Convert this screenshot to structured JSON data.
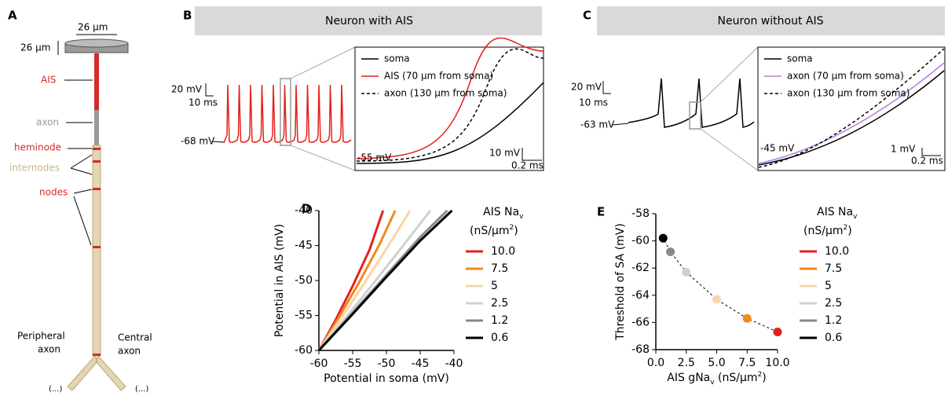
{
  "panel_a": {
    "letter": "A",
    "width_label": "26 μm",
    "height_label": "26 μm",
    "ais": "AIS",
    "axon": "axon",
    "heminode": "heminode",
    "internodes": "internodes",
    "nodes": "nodes",
    "peripheral_axon": [
      "Peripheral",
      "axon"
    ],
    "central_axon": [
      "Central",
      "axon"
    ],
    "continuation": [
      "(...)",
      "(...)"
    ]
  },
  "panel_b": {
    "letter": "B",
    "title": "Neuron with AIS",
    "scale_v": "20 mV",
    "scale_t": "10 ms",
    "rest": "-68 mV",
    "legend": [
      "soma",
      "AIS (70 μm from soma)",
      "axon (130 μm from soma)"
    ],
    "inset_level": "-55 mV",
    "inset_scale_v": "10 mV",
    "inset_scale_t": "0.2 ms"
  },
  "panel_c": {
    "letter": "C",
    "title": "Neuron without AIS",
    "scale_v": "20 mV",
    "scale_t": "10 ms",
    "rest": "-63 mV",
    "legend": [
      "soma",
      "axon (70 μm from soma)",
      "axon (130 μm from soma)"
    ],
    "inset_level": "-45 mV",
    "inset_scale_v": "1 mV",
    "inset_scale_t": "0.2 ms"
  },
  "chart_data": [
    {
      "type": "line",
      "panel": "D",
      "xlabel": "Potential in soma (mV)",
      "ylabel": "Potential in AIS (mV)",
      "legend_title": [
        "AIS Na",
        "v",
        "(nS/μm",
        "2",
        ")"
      ],
      "xlim": [
        -60,
        -40
      ],
      "ylim": [
        -60,
        -40
      ],
      "xticks": [
        -60,
        -55,
        -50,
        -45,
        -40
      ],
      "yticks": [
        -60,
        -55,
        -50,
        -45,
        -40
      ],
      "series": [
        {
          "name": "10.0",
          "color": "#e3211c",
          "x": [
            -60,
            -57.5,
            -55,
            -52.5,
            -50.5
          ],
          "values": [
            -60,
            -55.6,
            -50.8,
            -45.6,
            -40
          ]
        },
        {
          "name": "7.5",
          "color": "#f08a1c",
          "x": [
            -60,
            -57,
            -54,
            -51,
            -48.7
          ],
          "values": [
            -60,
            -55.2,
            -50.2,
            -44.8,
            -40
          ]
        },
        {
          "name": "5",
          "color": "#f9d5a8",
          "x": [
            -60,
            -56.5,
            -53,
            -49.5,
            -46.5
          ],
          "values": [
            -60,
            -55.1,
            -50,
            -44.7,
            -40
          ]
        },
        {
          "name": "2.5",
          "color": "#d0d0d0",
          "x": [
            -60,
            -56,
            -52,
            -48,
            -43.5
          ],
          "values": [
            -60,
            -55.3,
            -50.5,
            -45.6,
            -40
          ]
        },
        {
          "name": "1.2",
          "color": "#888888",
          "x": [
            -60,
            -55,
            -50,
            -45,
            -41
          ],
          "values": [
            -60,
            -54.6,
            -49.2,
            -43.8,
            -40
          ]
        },
        {
          "name": "0.6",
          "color": "#000000",
          "x": [
            -60,
            -55,
            -50,
            -45,
            -40.3
          ],
          "values": [
            -60,
            -54.8,
            -49.5,
            -44.3,
            -40
          ]
        }
      ]
    },
    {
      "type": "scatter",
      "panel": "E",
      "xlabel": [
        "AIS gNa",
        "v",
        " (nS/μm",
        "2",
        ")"
      ],
      "ylabel": "Threshold of SA (mV)",
      "legend_title": [
        "AIS Na",
        "v",
        "(nS/μm",
        "2",
        ")"
      ],
      "xlim": [
        0,
        10
      ],
      "ylim": [
        -68,
        -58
      ],
      "xticks": [
        {
          "value": 0,
          "label": "0.0"
        },
        2.5,
        {
          "value": 5,
          "label": "5.0"
        },
        7.5,
        {
          "value": 10,
          "label": "10.0"
        }
      ],
      "yticks": [
        -68,
        -66,
        -64,
        -62,
        -60,
        -58
      ],
      "series": [
        {
          "name": "10.0",
          "color": "#e3211c",
          "x": [
            10
          ],
          "values": [
            -66.7
          ]
        },
        {
          "name": "7.5",
          "color": "#f08a1c",
          "x": [
            7.5
          ],
          "values": [
            -65.7
          ]
        },
        {
          "name": "5",
          "color": "#f9d5a8",
          "x": [
            5
          ],
          "values": [
            -64.3
          ]
        },
        {
          "name": "2.5",
          "color": "#d0d0d0",
          "x": [
            2.5
          ],
          "values": [
            -62.3
          ]
        },
        {
          "name": "1.2",
          "color": "#888888",
          "x": [
            1.2
          ],
          "values": [
            -60.8
          ]
        },
        {
          "name": "0.6",
          "color": "#000000",
          "x": [
            0.6
          ],
          "values": [
            -59.8
          ]
        }
      ]
    }
  ]
}
